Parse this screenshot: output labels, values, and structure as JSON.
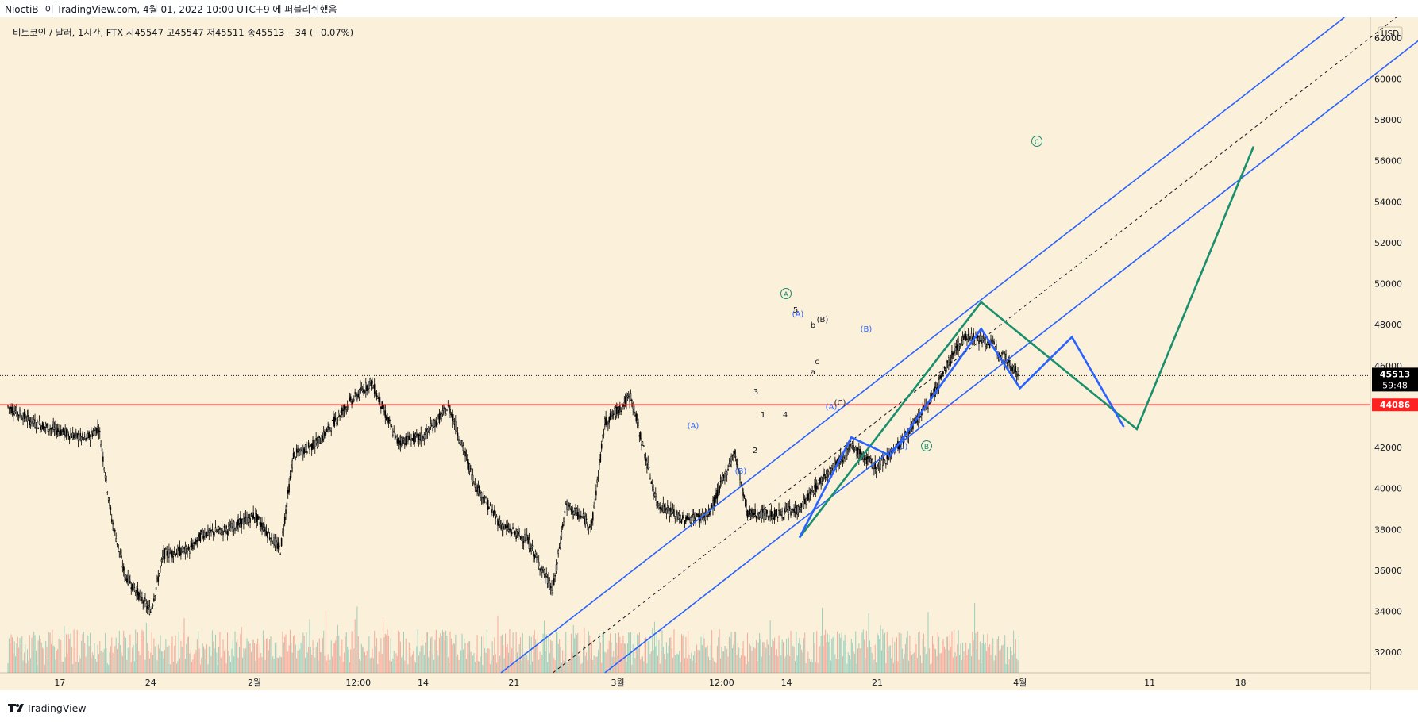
{
  "header": {
    "publisher": "NioctiB- 이 TradingView.com, 4월 01, 2022 10:00 UTC+9 에 퍼블리쉬했음"
  },
  "legend": {
    "symbol_info": "비트코인 / 달러, 1시간, FTX  시45547  고45547  저45511  종45513  −34 (−0.07%)"
  },
  "price_axis": {
    "currency": "USD",
    "ticks": [
      "62000",
      "60000",
      "58000",
      "56000",
      "54000",
      "52000",
      "50000",
      "48000",
      "46000",
      "44000",
      "42000",
      "40000",
      "38000",
      "36000",
      "34000",
      "32000"
    ]
  },
  "time_axis": {
    "ticks": [
      "17",
      "24",
      "2월",
      "12:00",
      "14",
      "21",
      "3월",
      "12:00",
      "14",
      "21",
      "4월",
      "11",
      "18"
    ]
  },
  "badges": {
    "last_price": "45513",
    "countdown": "59:48",
    "level_price": "44086"
  },
  "footer": {
    "brand": "TradingView"
  },
  "wave_labels": {
    "green": [
      "A",
      "B",
      "C"
    ],
    "blue": [
      "(A)",
      "(B)",
      "(A)",
      "(B)",
      "(C)",
      "(A)",
      "(B)",
      "(C)"
    ],
    "black": [
      "1",
      "2",
      "3",
      "4",
      "5",
      "a",
      "b",
      "c"
    ]
  },
  "colors": {
    "background": "#fbf0d9",
    "up_candle": "#f5f5f5",
    "down_candle": "#000000",
    "support_line": "#ff2020",
    "channel_line": "#2962ff",
    "wave_green": "#1a8f6d",
    "wave_blue": "#2962ff",
    "volume_up": "#26a69a",
    "volume_down": "#ef5350"
  },
  "chart_data": {
    "type": "candlestick",
    "symbol": "비트코인 / 달러",
    "interval": "1시간",
    "exchange": "FTX",
    "ohlc_last": {
      "open": 45547,
      "high": 45547,
      "low": 45511,
      "close": 45513,
      "change": -34,
      "change_pct": -0.07
    },
    "ylim": [
      31000,
      63000
    ],
    "y_ticks": [
      62000,
      60000,
      58000,
      56000,
      54000,
      52000,
      50000,
      48000,
      46000,
      44000,
      42000,
      40000,
      38000,
      36000,
      34000,
      32000
    ],
    "x_range": [
      "2022-01-13",
      "2022-04-28"
    ],
    "x_tick_labels": [
      "17",
      "24",
      "2월",
      "12:00",
      "14",
      "21",
      "3월",
      "12:00",
      "14",
      "21",
      "4월",
      "11",
      "18"
    ],
    "horizontal_level": 44086,
    "last_price_line": 45513,
    "close_path": [
      {
        "x": "2022-01-13",
        "y": 44000
      },
      {
        "x": "2022-01-15",
        "y": 43200
      },
      {
        "x": "2022-01-17",
        "y": 42800
      },
      {
        "x": "2022-01-19",
        "y": 42400
      },
      {
        "x": "2022-01-20",
        "y": 43000
      },
      {
        "x": "2022-01-21",
        "y": 38500
      },
      {
        "x": "2022-01-22",
        "y": 35800
      },
      {
        "x": "2022-01-24",
        "y": 34000
      },
      {
        "x": "2022-01-25",
        "y": 36800
      },
      {
        "x": "2022-01-27",
        "y": 37000
      },
      {
        "x": "2022-01-28",
        "y": 37800
      },
      {
        "x": "2022-01-30",
        "y": 38000
      },
      {
        "x": "2022-02-01",
        "y": 38700
      },
      {
        "x": "2022-02-03",
        "y": 37000
      },
      {
        "x": "2022-02-04",
        "y": 41600
      },
      {
        "x": "2022-02-06",
        "y": 42300
      },
      {
        "x": "2022-02-08",
        "y": 44000
      },
      {
        "x": "2022-02-10",
        "y": 45200
      },
      {
        "x": "2022-02-12",
        "y": 42300
      },
      {
        "x": "2022-02-14",
        "y": 42500
      },
      {
        "x": "2022-02-16",
        "y": 44000
      },
      {
        "x": "2022-02-18",
        "y": 40200
      },
      {
        "x": "2022-02-20",
        "y": 38200
      },
      {
        "x": "2022-02-22",
        "y": 37500
      },
      {
        "x": "2022-02-24",
        "y": 35000
      },
      {
        "x": "2022-02-25",
        "y": 39200
      },
      {
        "x": "2022-02-27",
        "y": 38200
      },
      {
        "x": "2022-02-28",
        "y": 43200
      },
      {
        "x": "2022-03-02",
        "y": 44500
      },
      {
        "x": "2022-03-04",
        "y": 39300
      },
      {
        "x": "2022-03-06",
        "y": 38500
      },
      {
        "x": "2022-03-08",
        "y": 38700
      },
      {
        "x": "2022-03-10",
        "y": 41800
      },
      {
        "x": "2022-03-11",
        "y": 38800
      },
      {
        "x": "2022-03-13",
        "y": 38700
      },
      {
        "x": "2022-03-15",
        "y": 39000
      },
      {
        "x": "2022-03-17",
        "y": 40700
      },
      {
        "x": "2022-03-19",
        "y": 42000
      },
      {
        "x": "2022-03-21",
        "y": 41000
      },
      {
        "x": "2022-03-23",
        "y": 42400
      },
      {
        "x": "2022-03-25",
        "y": 44200
      },
      {
        "x": "2022-03-27",
        "y": 46800
      },
      {
        "x": "2022-03-28",
        "y": 47500
      },
      {
        "x": "2022-03-30",
        "y": 47000
      },
      {
        "x": "2022-04-01",
        "y": 45513
      }
    ],
    "channel": {
      "upper": [
        {
          "x": "2022-02-20",
          "y": 31000
        },
        {
          "x": "2022-04-26",
          "y": 63000
        }
      ],
      "middle": [
        {
          "x": "2022-02-24",
          "y": 31000
        },
        {
          "x": "2022-04-30",
          "y": 63000
        }
      ],
      "lower": [
        {
          "x": "2022-02-28",
          "y": 31000
        },
        {
          "x": "2022-05-04",
          "y": 63000
        }
      ]
    },
    "projections": {
      "green": [
        {
          "x": "2022-03-15",
          "y": 37600,
          "label": ""
        },
        {
          "x": "2022-03-29",
          "y": 49100,
          "label": "A"
        },
        {
          "x": "2022-04-10",
          "y": 42900,
          "label": "B"
        },
        {
          "x": "2022-04-19",
          "y": 56700,
          "label": "C"
        }
      ],
      "blue": [
        {
          "x": "2022-03-15",
          "y": 37600,
          "label": ""
        },
        {
          "x": "2022-03-19",
          "y": 42500,
          "label": "(A)"
        },
        {
          "x": "2022-03-22",
          "y": 41600,
          "label": "(B)"
        },
        {
          "x": "2022-03-29",
          "y": 47800,
          "label": "(A)"
        },
        {
          "x": "2022-04-01",
          "y": 44900,
          "label": "(A)"
        },
        {
          "x": "2022-04-05",
          "y": 47400,
          "label": "(B)"
        },
        {
          "x": "2022-04-09",
          "y": 43000,
          "label": "(C)"
        }
      ]
    }
  }
}
